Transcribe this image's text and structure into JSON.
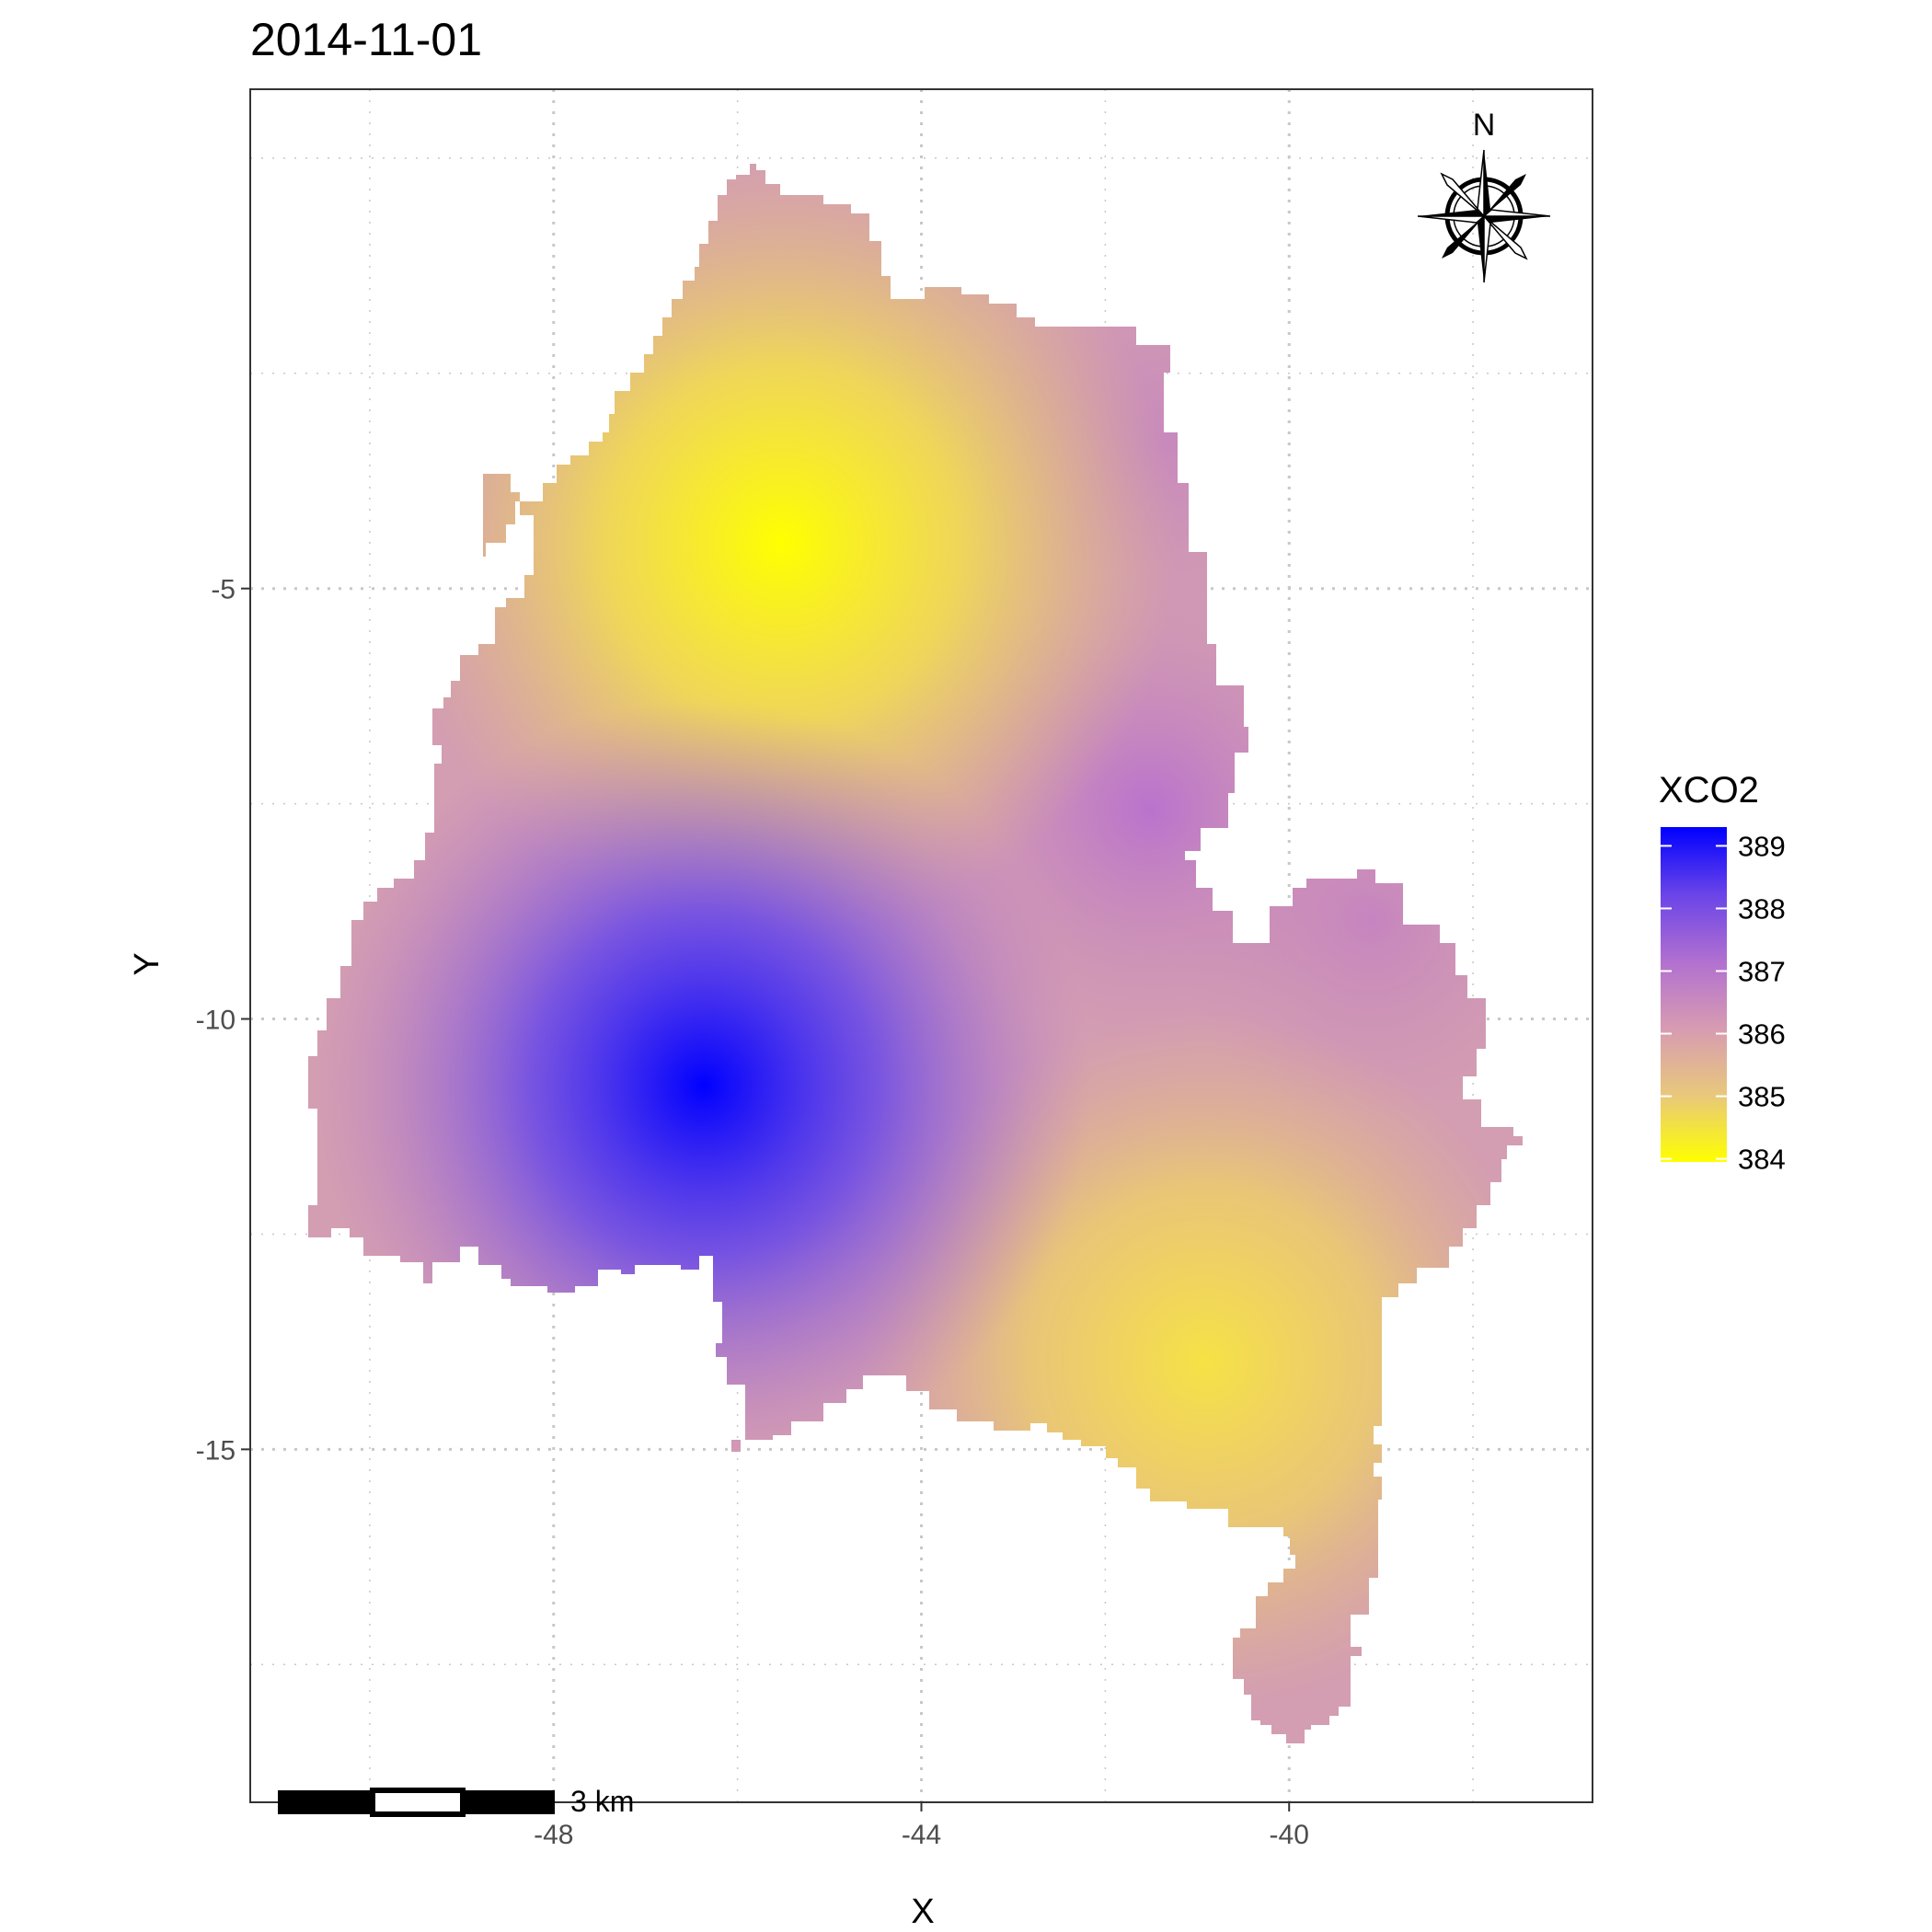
{
  "title": "2014-11-01",
  "x_axis": {
    "title": "X",
    "ticks": [
      "-48",
      "-44",
      "-40"
    ]
  },
  "y_axis": {
    "title": "Y",
    "ticks": [
      "-5",
      "-10",
      "-15"
    ]
  },
  "legend": {
    "title": "XCO2",
    "labels": [
      "389",
      "388",
      "387",
      "386",
      "385",
      "384"
    ]
  },
  "scale_bar": {
    "label": "3 km"
  },
  "north_arrow": {
    "label": "N"
  },
  "colors": {
    "low": "#ffff00",
    "mid": "#d79bb2",
    "high": "#0000ff"
  },
  "chart_data": {
    "type": "heatmap",
    "title": "2014-11-01",
    "xlabel": "X",
    "ylabel": "Y",
    "x_ticks": [
      -48,
      -44,
      -40
    ],
    "y_ticks": [
      -5,
      -10,
      -15
    ],
    "xlim": [
      -51.3,
      -36.7
    ],
    "ylim": [
      -19.1,
      0.8
    ],
    "grid": true,
    "legend_title": "XCO2",
    "color_range": [
      384,
      389
    ],
    "color_scale": [
      "#ffff00",
      "#e8c87c",
      "#d79bb2",
      "#b170d0",
      "#6a44e8",
      "#0000ff"
    ],
    "extremes": [
      {
        "label": "high",
        "x": -46.4,
        "y": -11.2,
        "value": 389.2
      },
      {
        "label": "low",
        "x": -45.5,
        "y": -5.0,
        "value": 384.0
      },
      {
        "label": "low",
        "x": -41.8,
        "y": -13.8,
        "value": 384.8
      }
    ]
  }
}
